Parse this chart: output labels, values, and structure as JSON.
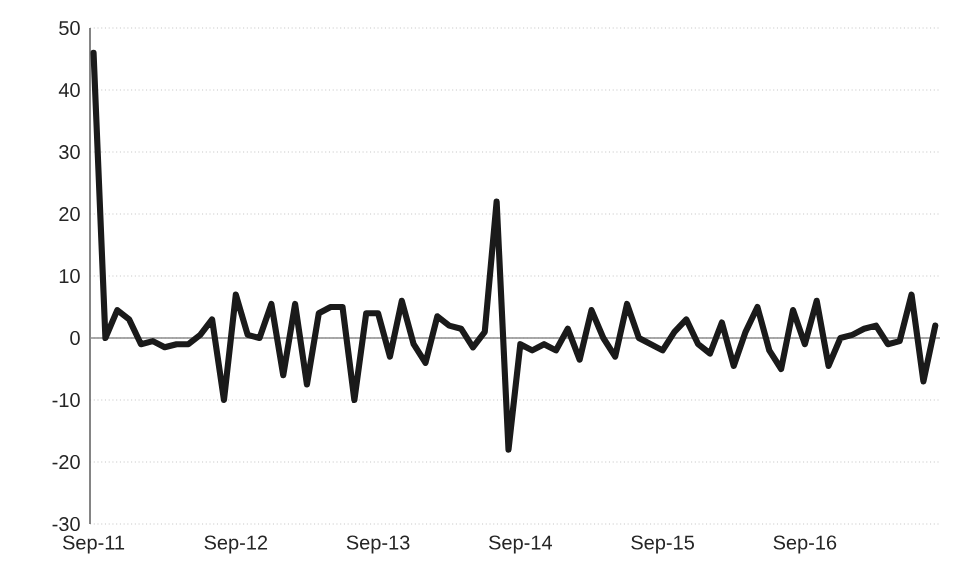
{
  "chart_data": {
    "type": "line",
    "categories": [
      "Sep-11",
      null,
      null,
      null,
      null,
      null,
      null,
      null,
      null,
      null,
      null,
      null,
      "Sep-12",
      null,
      null,
      null,
      null,
      null,
      null,
      null,
      null,
      null,
      null,
      null,
      "Sep-13",
      null,
      null,
      null,
      null,
      null,
      null,
      null,
      null,
      null,
      null,
      null,
      "Sep-14",
      null,
      null,
      null,
      null,
      null,
      null,
      null,
      null,
      null,
      null,
      null,
      "Sep-15",
      null,
      null,
      null,
      null,
      null,
      null,
      null,
      null,
      null,
      null,
      null,
      "Sep-16",
      null,
      null,
      null,
      null,
      null,
      null,
      null,
      null,
      null,
      null,
      null
    ],
    "series": [
      {
        "color": "#1a1a1a",
        "values": [
          46,
          0,
          4.5,
          3,
          -1,
          -0.5,
          -1.5,
          -1,
          -1,
          0.5,
          3,
          -10,
          7,
          0.5,
          0,
          5.5,
          -6,
          5.5,
          -7.5,
          4,
          5,
          5,
          -10,
          4,
          4,
          -3,
          6,
          -1,
          -4,
          3.5,
          2,
          1.5,
          -1.5,
          1,
          22,
          -18,
          -1,
          -2,
          -1,
          -2,
          1.5,
          -3.5,
          4.5,
          0,
          -3,
          5.5,
          0,
          -1,
          -2,
          1,
          3,
          -1,
          -2.5,
          2.5,
          -4.5,
          1,
          5,
          -2,
          -5,
          4.5,
          -1,
          6,
          -4.5,
          0,
          0.5,
          1.5,
          2,
          -1,
          -0.5,
          7,
          -7,
          2
        ]
      }
    ],
    "ylim": [
      -30,
      50
    ],
    "yticks": [
      -30,
      -20,
      -10,
      0,
      10,
      20,
      30,
      40,
      50
    ],
    "grid": "y",
    "legend": false,
    "marker": "none",
    "line_style": "solid"
  }
}
